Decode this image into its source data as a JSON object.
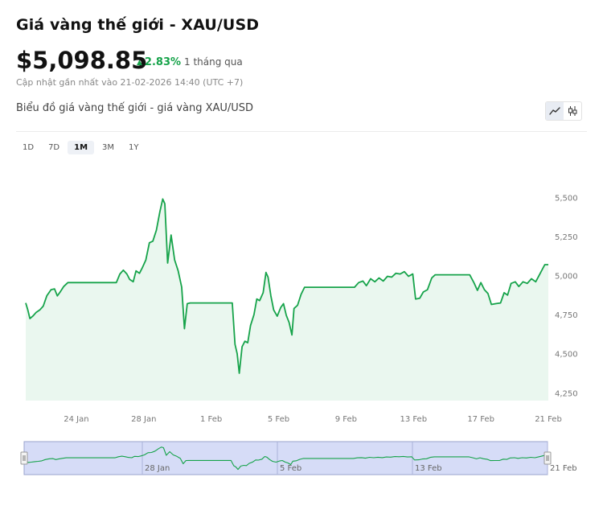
{
  "header": {
    "title": "Giá vàng thế giới - XAU/USD",
    "price": "$5,098.85",
    "change_pct": "2.83%",
    "change_period": "1 tháng qua",
    "updated": "Cập nhật gần nhất vào 21-02-2026 14:40 (UTC +7)",
    "subtitle": "Biểu đồ giá vàng thế giới - giá vàng XAU/USD"
  },
  "chart_toggle": {
    "icons": [
      "line-chart-icon",
      "candlestick-icon"
    ],
    "active": "line-chart-icon"
  },
  "ranges": {
    "items": [
      "1D",
      "7D",
      "1M",
      "3M",
      "1Y"
    ],
    "active": "1M"
  },
  "colors": {
    "line": "#16a34a",
    "area": "#eaf7ef",
    "up": "#16a34a",
    "navigator_fill": "#d6dcf7",
    "navigator_border": "#99a3cc"
  },
  "chart_data": {
    "type": "line",
    "title": "",
    "xlabel": "",
    "ylabel": "",
    "x_range": [
      "2026-01-21",
      "2026-02-21"
    ],
    "ylim": [
      4200,
      5600
    ],
    "yticks": [
      4250,
      4500,
      4750,
      5000,
      5250,
      5500
    ],
    "ytick_labels": [
      "4,250",
      "4,500",
      "4,750",
      "5,000",
      "5,250",
      "5,500"
    ],
    "xticks": [
      "2026-01-24",
      "2026-01-28",
      "2026-02-01",
      "2026-02-05",
      "2026-02-09",
      "2026-02-13",
      "2026-02-17",
      "2026-02-21"
    ],
    "xtick_labels": [
      "24 Jan",
      "28 Jan",
      "1 Feb",
      "5 Feb",
      "9 Feb",
      "13 Feb",
      "17 Feb",
      "21 Feb"
    ],
    "navigator_labels": [
      "28 Jan",
      "5 Feb",
      "13 Feb",
      "21 Feb"
    ],
    "navigator_ticks": [
      "2026-01-28",
      "2026-02-05",
      "2026-02-13",
      "2026-02-21"
    ],
    "grid": false,
    "series": [
      {
        "values": [
          [
            "2026-01-21T00:00",
            4825
          ],
          [
            "2026-01-21T03:00",
            4780
          ],
          [
            "2026-01-21T06:00",
            4725
          ],
          [
            "2026-01-21T10:00",
            4740
          ],
          [
            "2026-01-21T15:00",
            4765
          ],
          [
            "2026-01-21T20:00",
            4780
          ],
          [
            "2026-01-22T01:00",
            4805
          ],
          [
            "2026-01-22T06:00",
            4870
          ],
          [
            "2026-01-22T12:00",
            4910
          ],
          [
            "2026-01-22T17:00",
            4915
          ],
          [
            "2026-01-22T21:00",
            4870
          ],
          [
            "2026-01-23T01:00",
            4895
          ],
          [
            "2026-01-23T06:00",
            4930
          ],
          [
            "2026-01-23T12:00",
            4955
          ],
          [
            "2026-01-24T12:00",
            4955
          ],
          [
            "2026-01-25T12:00",
            4955
          ],
          [
            "2026-01-26T09:00",
            4955
          ],
          [
            "2026-01-26T14:00",
            5010
          ],
          [
            "2026-01-26T19:00",
            5035
          ],
          [
            "2026-01-27T00:00",
            5010
          ],
          [
            "2026-01-27T04:00",
            4975
          ],
          [
            "2026-01-27T09:00",
            4960
          ],
          [
            "2026-01-27T13:00",
            5030
          ],
          [
            "2026-01-27T18:00",
            5015
          ],
          [
            "2026-01-27T22:00",
            5050
          ],
          [
            "2026-01-28T03:00",
            5100
          ],
          [
            "2026-01-28T08:00",
            5210
          ],
          [
            "2026-01-28T13:00",
            5220
          ],
          [
            "2026-01-28T18:00",
            5290
          ],
          [
            "2026-01-28T23:00",
            5410
          ],
          [
            "2026-01-29T03:00",
            5490
          ],
          [
            "2026-01-29T06:00",
            5460
          ],
          [
            "2026-01-29T10:00",
            5080
          ],
          [
            "2026-01-29T15:00",
            5260
          ],
          [
            "2026-01-29T20:00",
            5100
          ],
          [
            "2026-01-30T01:00",
            5030
          ],
          [
            "2026-01-30T06:00",
            4925
          ],
          [
            "2026-01-30T10:00",
            4660
          ],
          [
            "2026-01-30T14:00",
            4820
          ],
          [
            "2026-01-30T18:00",
            4825
          ],
          [
            "2026-01-31T12:00",
            4825
          ],
          [
            "2026-02-01T12:00",
            4825
          ],
          [
            "2026-02-02T06:00",
            4825
          ],
          [
            "2026-02-02T10:00",
            4560
          ],
          [
            "2026-02-02T13:00",
            4500
          ],
          [
            "2026-02-02T16:00",
            4375
          ],
          [
            "2026-02-02T20:00",
            4545
          ],
          [
            "2026-02-03T00:00",
            4580
          ],
          [
            "2026-02-03T04:00",
            4570
          ],
          [
            "2026-02-03T08:00",
            4680
          ],
          [
            "2026-02-03T13:00",
            4750
          ],
          [
            "2026-02-03T17:00",
            4850
          ],
          [
            "2026-02-03T21:00",
            4840
          ],
          [
            "2026-02-04T02:00",
            4890
          ],
          [
            "2026-02-04T06:00",
            5020
          ],
          [
            "2026-02-04T09:00",
            4990
          ],
          [
            "2026-02-04T13:00",
            4870
          ],
          [
            "2026-02-04T17:00",
            4780
          ],
          [
            "2026-02-04T22:00",
            4740
          ],
          [
            "2026-02-05T03:00",
            4795
          ],
          [
            "2026-02-05T07:00",
            4820
          ],
          [
            "2026-02-05T11:00",
            4745
          ],
          [
            "2026-02-05T15:00",
            4700
          ],
          [
            "2026-02-05T19:00",
            4620
          ],
          [
            "2026-02-05T22:00",
            4790
          ],
          [
            "2026-02-06T03:00",
            4810
          ],
          [
            "2026-02-06T08:00",
            4880
          ],
          [
            "2026-02-06T13:00",
            4925
          ],
          [
            "2026-02-07T12:00",
            4925
          ],
          [
            "2026-02-08T12:00",
            4925
          ],
          [
            "2026-02-09T12:00",
            4925
          ],
          [
            "2026-02-09T18:00",
            4955
          ],
          [
            "2026-02-10T00:00",
            4965
          ],
          [
            "2026-02-10T05:00",
            4935
          ],
          [
            "2026-02-10T11:00",
            4980
          ],
          [
            "2026-02-10T17:00",
            4960
          ],
          [
            "2026-02-10T23:00",
            4985
          ],
          [
            "2026-02-11T05:00",
            4965
          ],
          [
            "2026-02-11T11:00",
            4995
          ],
          [
            "2026-02-11T17:00",
            4990
          ],
          [
            "2026-02-11T23:00",
            5015
          ],
          [
            "2026-02-12T05:00",
            5010
          ],
          [
            "2026-02-12T11:00",
            5025
          ],
          [
            "2026-02-12T17:00",
            4995
          ],
          [
            "2026-02-12T23:00",
            5010
          ],
          [
            "2026-02-13T03:00",
            4850
          ],
          [
            "2026-02-13T09:00",
            4855
          ],
          [
            "2026-02-13T14:00",
            4895
          ],
          [
            "2026-02-13T20:00",
            4910
          ],
          [
            "2026-02-14T02:00",
            4985
          ],
          [
            "2026-02-14T07:00",
            5005
          ],
          [
            "2026-02-15T12:00",
            5005
          ],
          [
            "2026-02-16T08:00",
            5005
          ],
          [
            "2026-02-16T14:00",
            4955
          ],
          [
            "2026-02-16T19:00",
            4905
          ],
          [
            "2026-02-17T00:00",
            4955
          ],
          [
            "2026-02-17T05:00",
            4910
          ],
          [
            "2026-02-17T10:00",
            4885
          ],
          [
            "2026-02-17T15:00",
            4815
          ],
          [
            "2026-02-17T21:00",
            4820
          ],
          [
            "2026-02-18T04:00",
            4825
          ],
          [
            "2026-02-18T09:00",
            4890
          ],
          [
            "2026-02-18T14:00",
            4875
          ],
          [
            "2026-02-18T19:00",
            4950
          ],
          [
            "2026-02-19T01:00",
            4960
          ],
          [
            "2026-02-19T06:00",
            4930
          ],
          [
            "2026-02-19T12:00",
            4960
          ],
          [
            "2026-02-19T18:00",
            4950
          ],
          [
            "2026-02-20T00:00",
            4980
          ],
          [
            "2026-02-20T06:00",
            4960
          ],
          [
            "2026-02-20T12:00",
            5010
          ],
          [
            "2026-02-20T19:00",
            5070
          ],
          [
            "2026-02-21T00:00",
            5070
          ]
        ]
      }
    ]
  }
}
